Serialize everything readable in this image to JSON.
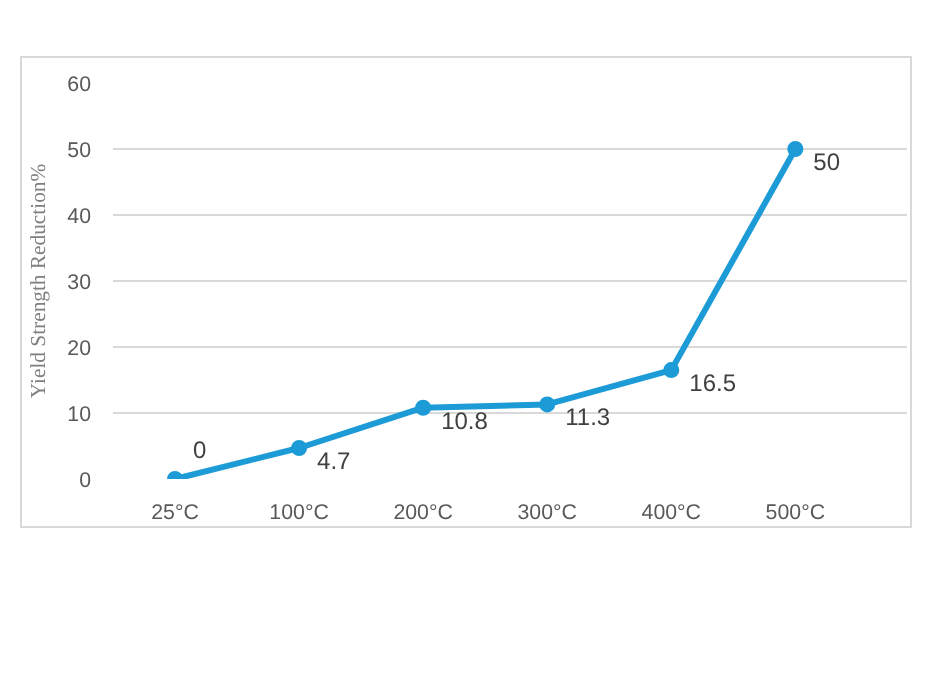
{
  "chart_data": {
    "type": "line",
    "ylabel": "Yield Strength Reduction%",
    "categories": [
      "25°C",
      "100°C",
      "200°C",
      "300°C",
      "400°C",
      "500°C"
    ],
    "series": [
      {
        "color": "#1c9bd7",
        "values": [
          0,
          4.7,
          10.8,
          11.3,
          16.5,
          50
        ]
      }
    ],
    "ylim": [
      0,
      60
    ],
    "yticks": [
      0,
      10,
      20,
      30,
      40,
      50,
      60
    ],
    "grid": "y",
    "marker": "circle",
    "line_style": "solid",
    "data_labels": true
  }
}
